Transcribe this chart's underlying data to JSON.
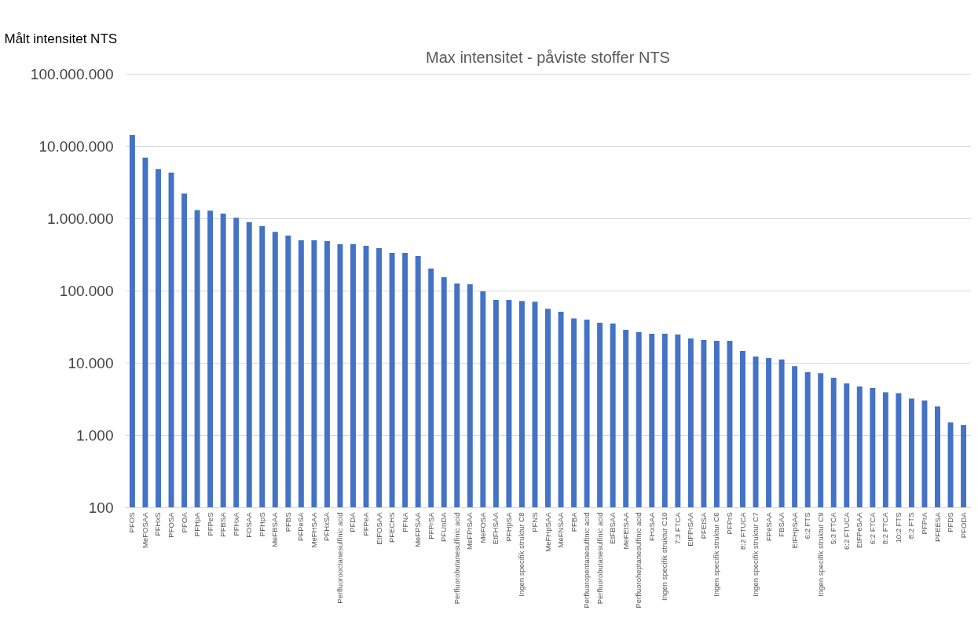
{
  "chart_data": {
    "type": "bar",
    "title": "Max intensitet - påviste stoffer NTS",
    "ylabel": "Målt intensitet NTS",
    "categories": [
      "PFOS",
      "MeFOSAA",
      "PFHxS",
      "PFOSA",
      "PFOA",
      "PFHpA",
      "PFPeS",
      "PFBSA",
      "PFHxA",
      "FOSAA",
      "PFHpS",
      "MeFBSAA",
      "PFBS",
      "PFPeSA",
      "MeFHSAA",
      "PFHxSA",
      "Perfluorooctanesulfinic acid",
      "PFDA",
      "PFPeA",
      "EtFOSAA",
      "PFECHS",
      "PFNA",
      "MeFPSAA",
      "PFPrSA",
      "PFUnDA",
      "Perfluorobutanesulfinic acid",
      "MeFPrSAA",
      "MeFOSA",
      "EtFHSAA",
      "PFHpSA",
      "Ingen specifik struktur C8",
      "PFNS",
      "MeFHpSAA",
      "MeFNSAA",
      "PFBA",
      "Perfluoropentanesulfinic acid",
      "Perfluorobutanesulfinic acid",
      "EtFBSAA",
      "MeFEtSAA",
      "Perfluoroheptanesulfinic acid",
      "FHxSAA",
      "Ingen specifik struktur C10",
      "7:3 FTCA",
      "EtFPrSAA",
      "PFEtSA",
      "Ingen specifik struktur C6",
      "PFPrS",
      "8:2 FTUCA",
      "Ingen specifik struktur C7",
      "FPeSAA",
      "FBSAA",
      "EtFHpSAA",
      "6:2 FTS",
      "Ingen specifik struktur C9",
      "5:3 FTCA",
      "6:2 FTUCA",
      "EtFPeSAA",
      "6:2 FTCA",
      "8:2 FTCA",
      "10:2 FTS",
      "8:2 FTS",
      "PFPrA",
      "PFEESA",
      "PFDS",
      "PFODA"
    ],
    "values": [
      14200000,
      6900000,
      4800000,
      4300000,
      2200000,
      1300000,
      1280000,
      1160000,
      1020000,
      880000,
      780000,
      650000,
      577000,
      497000,
      497000,
      484000,
      438000,
      438000,
      417000,
      386000,
      333000,
      333000,
      300000,
      201000,
      153000,
      125000,
      122000,
      97500,
      74000,
      74000,
      72000,
      70000,
      56000,
      51000,
      41000,
      39600,
      35800,
      35000,
      28600,
      26500,
      25300,
      25300,
      24600,
      21700,
      20700,
      20200,
      20200,
      14600,
      12200,
      11600,
      11100,
      9000,
      7400,
      7200,
      6200,
      5200,
      4700,
      4500,
      3900,
      3800,
      3200,
      3000,
      2500,
      1500,
      1380
    ],
    "color": "#4472c4",
    "log": true,
    "ylim": [
      100,
      100000000
    ],
    "yticks": [
      {
        "value": 100,
        "label": "100"
      },
      {
        "value": 1000,
        "label": "1.000"
      },
      {
        "value": 10000,
        "label": "10.000"
      },
      {
        "value": 100000,
        "label": "100.000"
      },
      {
        "value": 1000000,
        "label": "1.000.000"
      },
      {
        "value": 10000000,
        "label": "10.000.000"
      },
      {
        "value": 100000000,
        "label": "100.000.000"
      }
    ],
    "grid": "y"
  }
}
